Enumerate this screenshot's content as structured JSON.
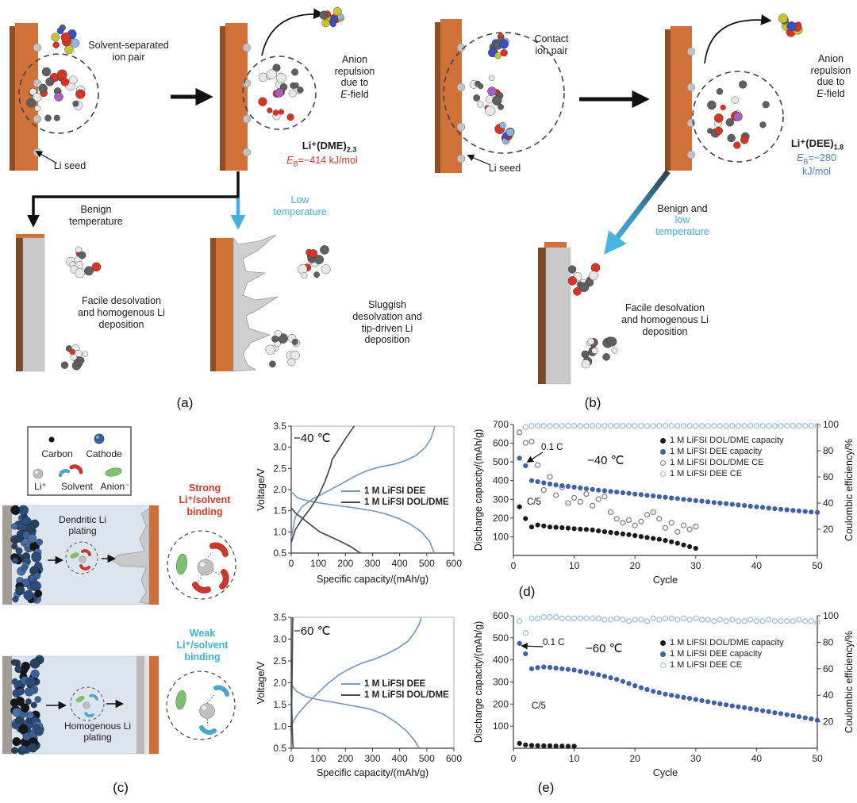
{
  "captions": {
    "a": "(a)",
    "b": "(b)",
    "c": "(c)",
    "d": "(d)",
    "e": "(e)"
  },
  "colors": {
    "accent_red": "#d03a2b",
    "accent_cyan": "#3fb0dc",
    "eb_blue": "#4d7fc4",
    "electrode_orange": "#d0713a",
    "electrode_side_brown": "#8d4e24",
    "li_metal_grey": "#c9c9c9",
    "dee_curve_blue": "#7a99c2",
    "dol_curve_dark": "#4a4a4a",
    "capacity_dot_blue": "#3f62a7",
    "ce_open_blue": "#9fc0e0",
    "capacity_dot_black": "#1a1a1a",
    "ce_open_dark": "#858585",
    "anion_green": "#7fbf6f",
    "solvent_red": "#c23b2e",
    "solvent_blue": "#4da6c9",
    "lithium_purple": "#a85fc0"
  },
  "atom_palettes": {
    "dme": [
      "#5f5f5f",
      "#5f5f5f",
      "#e9e9e9",
      "#e9e9e9",
      "#d63425",
      "#5f5f5f",
      "#e9e9e9",
      "#d63425"
    ],
    "fsi": [
      "#c9c32f",
      "#d63425",
      "#d63425",
      "#8fb4dd",
      "#5f5f5f",
      "#3b4fc2",
      "#c9c32f"
    ],
    "band": [
      "#3c6095",
      "#2d4c7c",
      "#27415f",
      "#14171c",
      "#4a6fa5"
    ]
  },
  "panel_a": {
    "ion_pair_label": "Solvent-separated\nion pair",
    "li_seed_label": "Li seed",
    "anion_repulsion_lines": "Anion\nrepulsion\ndue to",
    "efield_italic": "E",
    "efield_rest": "-field",
    "solvate_main": "Li⁺(DME)",
    "solvate_sub": "2.3",
    "eb_symbol": "E",
    "eb_sub": "B",
    "eb_value": "=−414 kJ/mol",
    "branch_benign": "Benign\ntemperature",
    "branch_low": "Low\ntemperature",
    "facile_label": "Facile desolvation\nand homogenous Li\ndeposition",
    "sluggish_label": "Sluggish\ndesolvation and\ntip-driven Li\ndeposition"
  },
  "panel_b": {
    "ion_pair_label": "Contact\nion pair",
    "li_seed_label": "Li seed",
    "anion_repulsion_lines": "Anion\nrepulsion\ndue to",
    "efield_italic": "E",
    "efield_rest": "-field",
    "solvate_main": "Li⁺(DEE)",
    "solvate_sub": "1.8",
    "eb_symbol": "E",
    "eb_sub": "B",
    "eb_value": "=−280 kJ/mol",
    "branch_benign": "Benign and",
    "branch_low": "low\ntemperature",
    "facile_label": "Facile desolvation\nand homogenous Li\ndeposition"
  },
  "panel_c": {
    "legend": {
      "carbon": "Carbon",
      "cathode": "Cathode",
      "li": "Li⁺",
      "solvent": "Solvent",
      "anion": "Anion⁻"
    },
    "dendritic_label": "Dendritic Li\nplating",
    "strong_label": "Strong\nLi⁺/solvent\nbinding",
    "homogenous_label": "Homogenous Li\nplating",
    "weak_label": "Weak\nLi⁺/solvent\nbinding"
  },
  "chart_data": [
    {
      "id": "voltage-minus40C",
      "type": "line",
      "xlabel": "Specific capacity/(mAh/g)",
      "ylabel": "Voltage/V",
      "xlim": [
        0,
        600
      ],
      "ylim": [
        0.5,
        3.5
      ],
      "xticks": [
        "0",
        "100",
        "200",
        "300",
        "400",
        "500",
        "600"
      ],
      "yticks": [
        "0.5",
        "1.0",
        "1.5",
        "2.0",
        "2.5",
        "3.0",
        "3.5"
      ],
      "legend": [
        {
          "label": "1 M LiFSI DEE",
          "marker": "line",
          "color": "#7a99c2"
        },
        {
          "label": "1 M LiFSI DOL/DME",
          "marker": "line",
          "color": "#4a4a4a"
        }
      ],
      "annotations": [
        {
          "text": "−40 ℃"
        }
      ],
      "series": [
        {
          "name": "1 M LiFSI DEE charge",
          "color": "#7a99c2",
          "points": [
            [
              0,
              0.85
            ],
            [
              15,
              1.35
            ],
            [
              40,
              1.6
            ],
            [
              80,
              1.78
            ],
            [
              130,
              1.95
            ],
            [
              180,
              2.12
            ],
            [
              230,
              2.3
            ],
            [
              280,
              2.45
            ],
            [
              330,
              2.54
            ],
            [
              380,
              2.6
            ],
            [
              420,
              2.68
            ],
            [
              460,
              2.8
            ],
            [
              495,
              3.0
            ],
            [
              515,
              3.2
            ],
            [
              530,
              3.5
            ]
          ]
        },
        {
          "name": "1 M LiFSI DEE discharge",
          "color": "#7a99c2",
          "points": [
            [
              0,
              1.95
            ],
            [
              25,
              1.8
            ],
            [
              70,
              1.72
            ],
            [
              140,
              1.65
            ],
            [
              230,
              1.57
            ],
            [
              300,
              1.5
            ],
            [
              350,
              1.42
            ],
            [
              395,
              1.32
            ],
            [
              440,
              1.18
            ],
            [
              480,
              1.0
            ],
            [
              510,
              0.78
            ],
            [
              528,
              0.5
            ]
          ]
        },
        {
          "name": "1 M LiFSI DOL/DME charge",
          "color": "#4a4a4a",
          "points": [
            [
              0,
              0.75
            ],
            [
              15,
              1.05
            ],
            [
              40,
              1.3
            ],
            [
              70,
              1.55
            ],
            [
              100,
              1.85
            ],
            [
              125,
              2.2
            ],
            [
              145,
              2.55
            ],
            [
              150,
              2.7
            ],
            [
              175,
              2.95
            ],
            [
              205,
              3.25
            ],
            [
              232,
              3.5
            ]
          ]
        },
        {
          "name": "1 M LiFSI DOL/DME discharge",
          "color": "#4a4a4a",
          "points": [
            [
              0,
              1.57
            ],
            [
              15,
              1.45
            ],
            [
              45,
              1.3
            ],
            [
              75,
              1.15
            ],
            [
              105,
              1.0
            ],
            [
              140,
              0.9
            ],
            [
              180,
              0.78
            ],
            [
              220,
              0.65
            ],
            [
              250,
              0.52
            ],
            [
              258,
              0.5
            ]
          ]
        }
      ]
    },
    {
      "id": "voltage-minus60C",
      "type": "line",
      "xlabel": "Specific capacity/(mAh/g)",
      "ylabel": "Voltage/V",
      "xlim": [
        0,
        600
      ],
      "ylim": [
        0.5,
        3.5
      ],
      "xticks": [
        "0",
        "100",
        "200",
        "300",
        "400",
        "500",
        "600"
      ],
      "yticks": [
        "0.5",
        "1.0",
        "1.5",
        "2.0",
        "2.5",
        "3.0",
        "3.5"
      ],
      "legend": [
        {
          "label": "1 M LiFSI DEE",
          "marker": "line",
          "color": "#7a99c2"
        },
        {
          "label": "1 M LiFSI DOL/DME",
          "marker": "line",
          "color": "#4a4a4a"
        }
      ],
      "annotations": [
        {
          "text": "−60 ℃"
        }
      ],
      "series": [
        {
          "name": "1 M LiFSI DEE charge",
          "color": "#7a99c2",
          "points": [
            [
              0,
              1.02
            ],
            [
              20,
              1.25
            ],
            [
              55,
              1.5
            ],
            [
              95,
              1.75
            ],
            [
              135,
              1.98
            ],
            [
              175,
              2.18
            ],
            [
              215,
              2.32
            ],
            [
              260,
              2.45
            ],
            [
              310,
              2.55
            ],
            [
              355,
              2.67
            ],
            [
              395,
              2.8
            ],
            [
              430,
              2.95
            ],
            [
              455,
              3.15
            ],
            [
              472,
              3.35
            ],
            [
              480,
              3.5
            ]
          ]
        },
        {
          "name": "1 M LiFSI DEE discharge",
          "color": "#7a99c2",
          "points": [
            [
              0,
              1.97
            ],
            [
              20,
              1.8
            ],
            [
              55,
              1.68
            ],
            [
              95,
              1.62
            ],
            [
              160,
              1.55
            ],
            [
              230,
              1.47
            ],
            [
              290,
              1.4
            ],
            [
              340,
              1.28
            ],
            [
              385,
              1.1
            ],
            [
              425,
              0.9
            ],
            [
              455,
              0.68
            ],
            [
              472,
              0.5
            ]
          ]
        },
        {
          "name": "1 M LiFSI DOL/DME charge",
          "color": "#4a4a4a",
          "points": [
            [
              0,
              0.9
            ],
            [
              2,
              1.6
            ],
            [
              4,
              2.6
            ],
            [
              5,
              3.3
            ],
            [
              6,
              3.5
            ]
          ]
        },
        {
          "name": "1 M LiFSI DOL/DME discharge",
          "color": "#4a4a4a",
          "points": [
            [
              0,
              1.95
            ],
            [
              2,
              1.4
            ],
            [
              4,
              0.9
            ],
            [
              6,
              0.6
            ],
            [
              8,
              0.5
            ]
          ]
        }
      ]
    },
    {
      "id": "cycling-minus40C",
      "type": "scatter",
      "xlabel": "Cycle",
      "ylabel": "Discharge capacity/(mAh/g)",
      "y2label": "Coulombic efficiency/%",
      "xlim": [
        0,
        50
      ],
      "ylim": [
        0,
        700
      ],
      "y2lim": [
        0,
        100
      ],
      "xticks": [
        "0",
        "10",
        "20",
        "30",
        "40",
        "50"
      ],
      "yticks": [
        "100",
        "200",
        "300",
        "400",
        "500",
        "600",
        "700"
      ],
      "y2ticks": [
        "20",
        "40",
        "60",
        "80",
        "100"
      ],
      "legend": [
        {
          "label": "1 M LiFSI DOL/DME capacity",
          "marker": "dot",
          "color": "#1a1a1a"
        },
        {
          "label": "1 M LiFSI DEE capacity",
          "marker": "dot",
          "color": "#3f62a7"
        },
        {
          "label": "1 M LiFSI DOL/DME CE",
          "marker": "open",
          "color": "#858585"
        },
        {
          "label": "1 M LiFSI DEE CE",
          "marker": "open",
          "color": "#9fc0e0"
        }
      ],
      "annotations": [
        {
          "text": "0.1 C"
        },
        {
          "text": "−40 ℃"
        },
        {
          "text": "C/5"
        }
      ],
      "series": [
        {
          "name": "1 M LiFSI DEE CE",
          "axis": "right",
          "marker": "open",
          "color": "#9fc0e0",
          "x_start": 1,
          "values": [
            94,
            98,
            99,
            99,
            99,
            99,
            99,
            99,
            99,
            99,
            99,
            99,
            99,
            99,
            99,
            99,
            99,
            99,
            99,
            99,
            99,
            99,
            99,
            99,
            99,
            99,
            99,
            99,
            99,
            99,
            99,
            99,
            99,
            99,
            99,
            99,
            99,
            99,
            99,
            99,
            99,
            99,
            99,
            99,
            99,
            99,
            99,
            99,
            99,
            99
          ]
        },
        {
          "name": "1 M LiFSI DOL/DME CE",
          "axis": "right",
          "marker": "open",
          "color": "#858585",
          "x_start": 1,
          "values": [
            94,
            86,
            87,
            69,
            50,
            60,
            46,
            52,
            40,
            44,
            41,
            47,
            38,
            43,
            45,
            33,
            28,
            25,
            27,
            23,
            26,
            31,
            33,
            28,
            21,
            25,
            18,
            23,
            20,
            22
          ]
        },
        {
          "name": "1 M LiFSI DEE capacity",
          "axis": "left",
          "marker": "dot",
          "color": "#3f62a7",
          "x_start": 1,
          "values": [
            520,
            480,
            400,
            394,
            388,
            382,
            377,
            373,
            369,
            365,
            361,
            357,
            353,
            349,
            346,
            342,
            339,
            335,
            332,
            328,
            325,
            321,
            318,
            314,
            311,
            307,
            304,
            300,
            297,
            293,
            290,
            287,
            283,
            280,
            277,
            273,
            270,
            267,
            263,
            260,
            257,
            253,
            250,
            247,
            244,
            241,
            238,
            235,
            232,
            230
          ]
        },
        {
          "name": "1 M LiFSI DOL/DME capacity",
          "axis": "left",
          "marker": "dot",
          "color": "#1a1a1a",
          "x_start": 1,
          "values": [
            260,
            197,
            152,
            163,
            158,
            152,
            150,
            148,
            146,
            143,
            141,
            139,
            136,
            131,
            127,
            123,
            119,
            115,
            111,
            106,
            101,
            96,
            91,
            86,
            80,
            73,
            65,
            56,
            47,
            38
          ]
        }
      ]
    },
    {
      "id": "cycling-minus60C",
      "type": "scatter",
      "xlabel": "Cycle",
      "ylabel": "Discharge capacity/(mAh/g)",
      "y2label": "Coulombic efficiency/%",
      "xlim": [
        0,
        50
      ],
      "ylim": [
        0,
        600
      ],
      "y2lim": [
        0,
        100
      ],
      "xticks": [
        "0",
        "10",
        "20",
        "30",
        "40",
        "50"
      ],
      "yticks": [
        "100",
        "200",
        "300",
        "400",
        "500",
        "600"
      ],
      "y2ticks": [
        "20",
        "40",
        "60",
        "80",
        "100"
      ],
      "legend": [
        {
          "label": "1 M LiFSI DOL/DME capacity",
          "marker": "dot",
          "color": "#1a1a1a"
        },
        {
          "label": "1 M LiFSI DEE capacity",
          "marker": "dot",
          "color": "#3f62a7"
        },
        {
          "label": "1 M LiFSI DEE CE",
          "marker": "open",
          "color": "#9fc0e0"
        }
      ],
      "annotations": [
        {
          "text": "0.1 C"
        },
        {
          "text": "−60 ℃"
        },
        {
          "text": "C/5"
        }
      ],
      "series": [
        {
          "name": "1 M LiFSI DEE CE",
          "axis": "right",
          "marker": "open",
          "color": "#9fc0e0",
          "x_start": 1,
          "values": [
            96,
            87,
            98,
            98,
            99,
            99,
            99,
            98,
            98,
            98,
            98,
            98,
            98,
            98,
            97,
            97,
            98,
            97,
            96,
            97,
            97,
            96,
            98,
            97,
            98,
            98,
            97,
            98,
            97,
            98,
            97,
            97,
            96,
            97,
            96,
            97,
            96,
            96,
            97,
            96,
            96,
            97,
            96,
            96,
            96,
            96,
            97,
            96,
            96,
            95
          ]
        },
        {
          "name": "1 M LiFSI DEE capacity",
          "axis": "left",
          "marker": "dot",
          "color": "#3f62a7",
          "x_start": 1,
          "values": [
            475,
            428,
            360,
            365,
            368,
            366,
            363,
            360,
            357,
            354,
            348,
            343,
            338,
            333,
            326,
            319,
            312,
            303,
            293,
            283,
            274,
            266,
            258,
            251,
            245,
            240,
            235,
            230,
            226,
            221,
            216,
            211,
            206,
            201,
            197,
            192,
            188,
            184,
            179,
            175,
            170,
            166,
            161,
            157,
            152,
            148,
            143,
            138,
            133,
            127
          ]
        },
        {
          "name": "1 M LiFSI DOL/DME capacity",
          "axis": "left",
          "marker": "dot",
          "color": "#1a1a1a",
          "x_start": 1,
          "values": [
            22,
            15,
            13,
            12,
            11,
            11,
            10,
            10,
            9,
            9
          ]
        }
      ]
    }
  ]
}
